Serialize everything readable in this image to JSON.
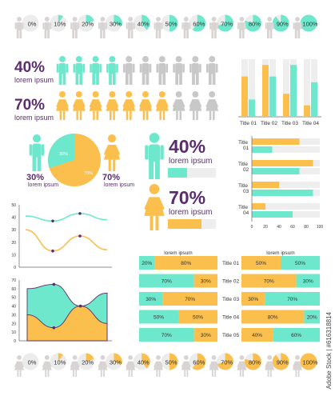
{
  "colors": {
    "teal": "#6ee8cc",
    "orange": "#fbbf4e",
    "purple": "#5b2d6e",
    "gray": "#c8c8c8",
    "lightgray": "#eeeeee",
    "axis": "#666666"
  },
  "top_row": {
    "labels": [
      "0%",
      "10%",
      "20%",
      "30%",
      "40%",
      "50%",
      "60%",
      "70%",
      "80%",
      "90%",
      "100%"
    ],
    "icon": "male-person-icon"
  },
  "bottom_row": {
    "labels": [
      "0%",
      "10%",
      "20%",
      "30%",
      "40%",
      "50%",
      "60%",
      "70%",
      "80%",
      "90%",
      "100%"
    ],
    "icon": "female-person-icon"
  },
  "pictogram_male": {
    "percent": "40%",
    "caption": "lorem ipsum",
    "filled": 4,
    "total": 10
  },
  "pictogram_female": {
    "percent": "70%",
    "caption": "lorem ipsum",
    "filled": 7,
    "total": 10
  },
  "pie_block": {
    "left_percent": "30%",
    "left_caption": "lorem ipsum",
    "right_percent": "70%",
    "right_caption": "lorem ipsum",
    "slice_labels": [
      "30%",
      "70%"
    ]
  },
  "big_stats": [
    {
      "percent": "40%",
      "caption": "lorem ipsum",
      "fill": 0.4,
      "icon": "male-person-icon"
    },
    {
      "percent": "70%",
      "caption": "lorem ipsum",
      "fill": 0.7,
      "icon": "female-person-icon"
    }
  ],
  "chart_data": [
    {
      "type": "bar",
      "categories": [
        "Title 01",
        "Title 02",
        "Title 03",
        "Title 04"
      ],
      "series": [
        {
          "values": [
            70,
            90,
            40,
            20
          ]
        },
        {
          "values": [
            30,
            70,
            90,
            60
          ]
        }
      ],
      "ylim": [
        0,
        100
      ]
    },
    {
      "type": "bar",
      "orientation": "horizontal",
      "categories": [
        "Title 01",
        "Title 02",
        "Title 03",
        "Title 04"
      ],
      "series": [
        {
          "values": [
            70,
            90,
            40,
            20
          ]
        },
        {
          "values": [
            30,
            70,
            90,
            60
          ]
        }
      ],
      "xlim": [
        0,
        100
      ],
      "xticks": [
        "0",
        "20",
        "40",
        "60",
        "80",
        "100"
      ]
    },
    {
      "type": "line",
      "x": [
        0,
        1,
        2,
        3
      ],
      "series": [
        {
          "values": [
            41,
            37,
            43,
            38
          ]
        },
        {
          "values": [
            30,
            13,
            25,
            14
          ]
        }
      ],
      "ylim": [
        0,
        50
      ],
      "yticks": [
        "0",
        "10",
        "20",
        "30",
        "40",
        "50"
      ]
    },
    {
      "type": "area",
      "x": [
        0,
        1,
        2,
        3
      ],
      "series": [
        {
          "values": [
            60,
            65,
            40,
            55
          ]
        },
        {
          "values": [
            30,
            15,
            40,
            20
          ]
        }
      ],
      "ylim": [
        0,
        70
      ],
      "yticks": [
        "0",
        "10",
        "20",
        "30",
        "40",
        "50",
        "60",
        "70"
      ]
    },
    {
      "type": "bar",
      "orientation": "horizontal-stacked-100",
      "header": "lorem ipsum",
      "rows": [
        {
          "left": 20,
          "right": 80
        },
        {
          "left": 70,
          "right": 30
        },
        {
          "left": 30,
          "right": 70
        },
        {
          "left": 50,
          "right": 50
        },
        {
          "left": 70,
          "right": 30
        }
      ]
    },
    {
      "type": "bar",
      "orientation": "horizontal-stacked-100",
      "header": "lorem ipsum",
      "categories": [
        "Title 01",
        "Title 02",
        "Title 03",
        "Title 04",
        "Title 05"
      ],
      "rows": [
        {
          "left": 50,
          "right": 50
        },
        {
          "left": 70,
          "right": 30
        },
        {
          "left": 30,
          "right": 70
        },
        {
          "left": 80,
          "right": 20
        },
        {
          "left": 40,
          "right": 60
        }
      ]
    }
  ],
  "watermark": "Adobe Stock | #616318814"
}
